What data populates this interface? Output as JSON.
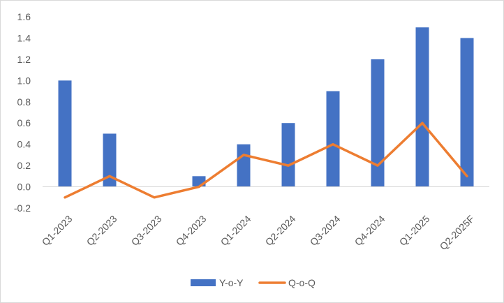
{
  "chart_data": {
    "type": "bar",
    "title": "",
    "xlabel": "",
    "ylabel": "",
    "categories": [
      "Q1-2023",
      "Q2-2023",
      "Q3-2023",
      "Q4-2023",
      "Q1-2024",
      "Q2-2024",
      "Q3-2024",
      "Q4-2024",
      "Q1-2025",
      "Q2-2025F"
    ],
    "ylim": [
      -0.2,
      1.6
    ],
    "yticks": [
      "1.6",
      "1.4",
      "1.2",
      "1.0",
      "0.8",
      "0.6",
      "0.4",
      "0.2",
      "0.0",
      "-0.2"
    ],
    "grid": false,
    "legend_position": "bottom",
    "series": [
      {
        "name": "Y-o-Y",
        "type": "bar",
        "color": "#4472c4",
        "values": [
          1.0,
          0.5,
          0.0,
          0.1,
          0.4,
          0.6,
          0.9,
          1.2,
          1.5,
          1.4
        ]
      },
      {
        "name": "Q-o-Q",
        "type": "line",
        "color": "#ed7d31",
        "values": [
          -0.1,
          0.1,
          -0.1,
          0.0,
          0.3,
          0.2,
          0.4,
          0.2,
          0.6,
          0.1
        ]
      }
    ]
  }
}
